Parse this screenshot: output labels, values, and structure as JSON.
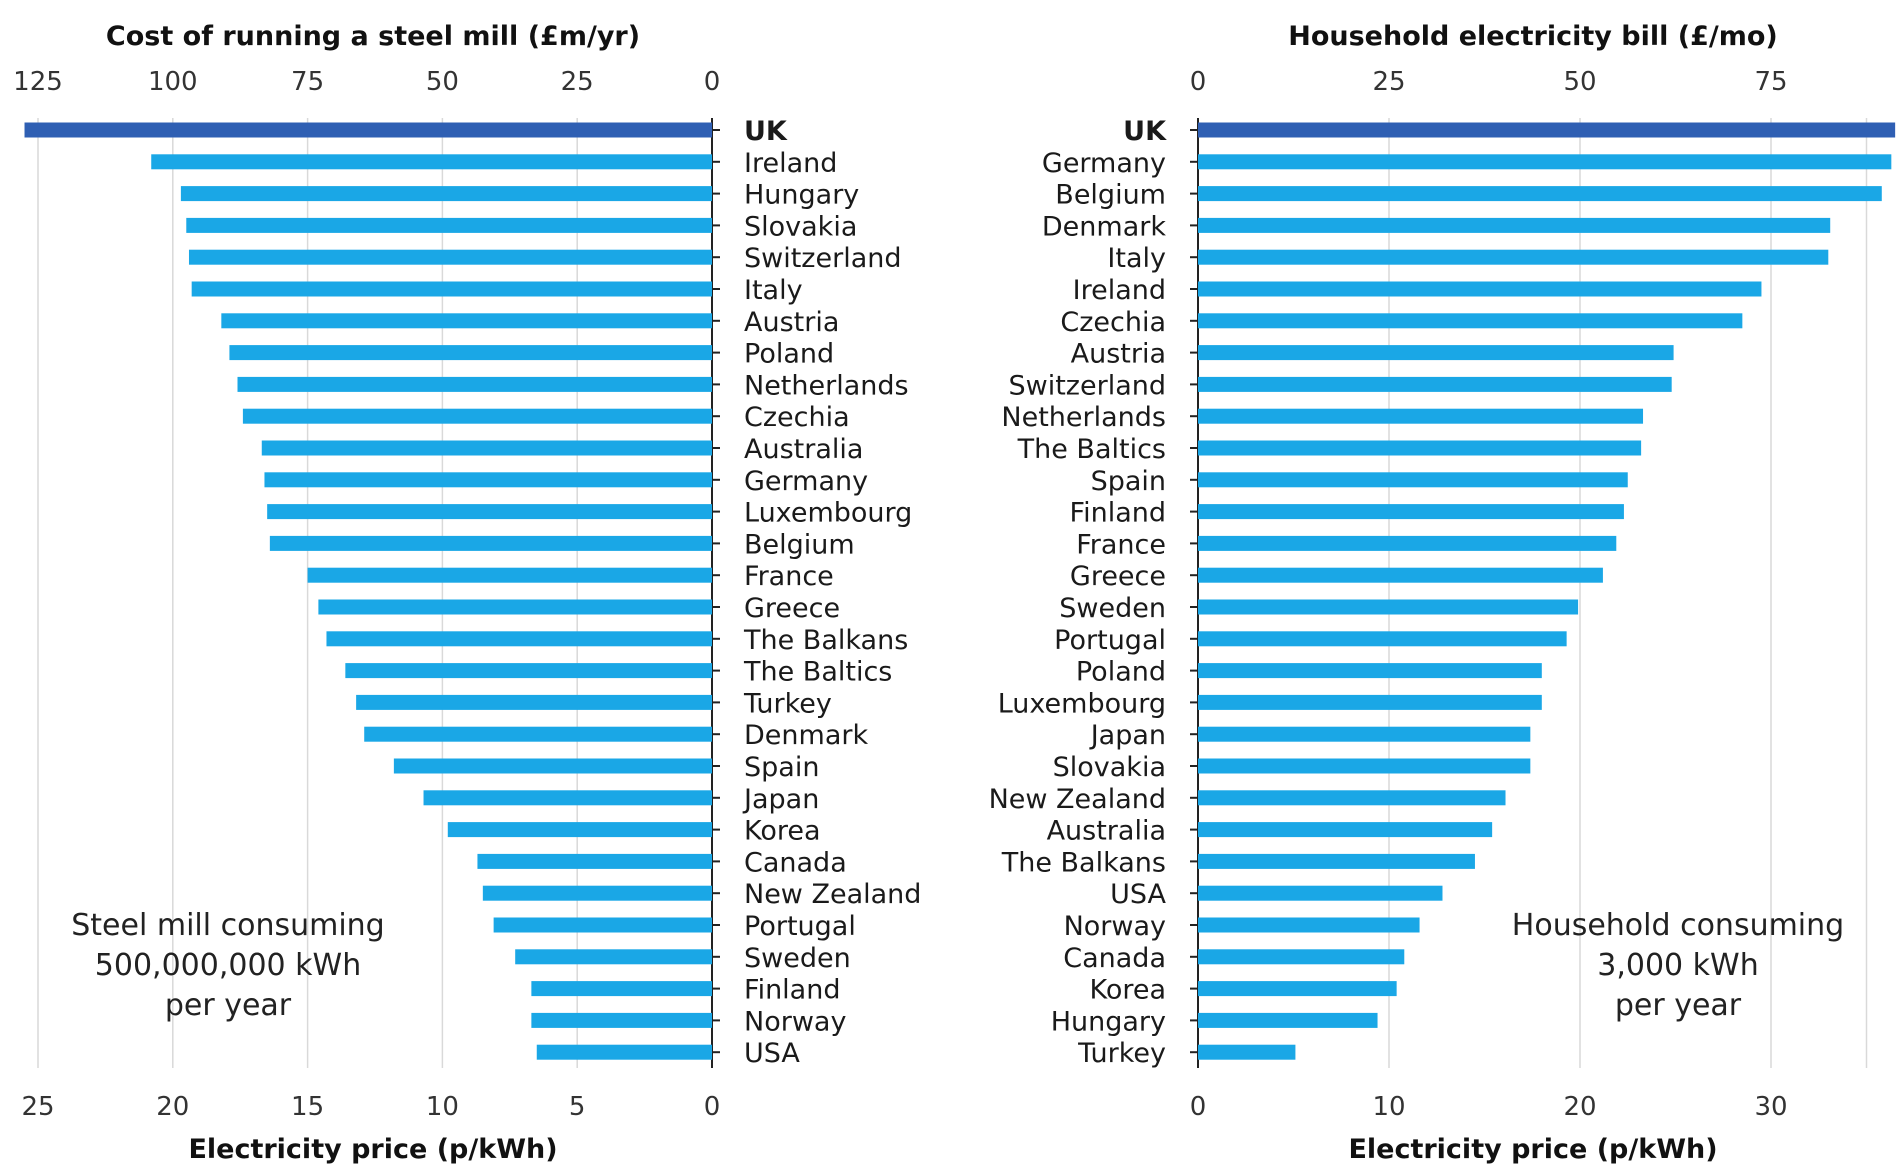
{
  "chart_data": [
    {
      "type": "bar",
      "orientation": "horizontal",
      "direction": "right-to-left",
      "top_axis_title": "Cost of running a steel mill (£m/yr)",
      "bottom_axis_title": "Electricity price (p/kWh)",
      "top_ticks": [
        "125",
        "100",
        "75",
        "50",
        "25",
        "0"
      ],
      "bottom_ticks": [
        "25",
        "20",
        "15",
        "10",
        "5",
        "0"
      ],
      "bottom_tick_values": [
        25,
        20,
        15,
        10,
        5,
        0
      ],
      "xlim": [
        0,
        25.7
      ],
      "annotation": [
        "Steel mill consuming",
        "500,000,000 kWh",
        "per year"
      ],
      "highlight_color": "#2f5fb3",
      "bar_color": "#1aa7e6",
      "categories": [
        "UK",
        "Ireland",
        "Hungary",
        "Slovakia",
        "Switzerland",
        "Italy",
        "Austria",
        "Poland",
        "Netherlands",
        "Czechia",
        "Australia",
        "Germany",
        "Luxembourg",
        "Belgium",
        "France",
        "Greece",
        "The Balkans",
        "The Baltics",
        "Turkey",
        "Denmark",
        "Spain",
        "Japan",
        "Korea",
        "Canada",
        "New Zealand",
        "Portugal",
        "Sweden",
        "Finland",
        "Norway",
        "USA"
      ],
      "values": [
        25.5,
        20.8,
        19.7,
        19.5,
        19.4,
        19.3,
        18.2,
        17.9,
        17.6,
        17.4,
        16.7,
        16.6,
        16.5,
        16.4,
        15.0,
        14.6,
        14.3,
        13.6,
        13.2,
        12.9,
        11.8,
        10.7,
        9.8,
        8.7,
        8.5,
        8.1,
        7.3,
        6.7,
        6.7,
        6.5
      ]
    },
    {
      "type": "bar",
      "orientation": "horizontal",
      "direction": "left-to-right",
      "top_axis_title": "Household electricity bill (£/mo)",
      "bottom_axis_title": "Electricity price (p/kWh)",
      "top_ticks": [
        "0",
        "25",
        "50",
        "75"
      ],
      "bottom_ticks": [
        "0",
        "10",
        "20",
        "30"
      ],
      "bottom_tick_values": [
        0,
        10,
        20,
        30
      ],
      "xlim": [
        0,
        36.6
      ],
      "annotation": [
        "Household consuming",
        "3,000 kWh",
        "per year"
      ],
      "highlight_color": "#2f5fb3",
      "bar_color": "#1aa7e6",
      "categories": [
        "UK",
        "Germany",
        "Belgium",
        "Denmark",
        "Italy",
        "Ireland",
        "Czechia",
        "Austria",
        "Switzerland",
        "Netherlands",
        "The Baltics",
        "Spain",
        "Finland",
        "France",
        "Greece",
        "Sweden",
        "Portugal",
        "Poland",
        "Luxembourg",
        "Japan",
        "Slovakia",
        "New Zealand",
        "Australia",
        "The Balkans",
        "USA",
        "Norway",
        "Canada",
        "Korea",
        "Hungary",
        "Turkey"
      ],
      "values": [
        36.5,
        36.3,
        35.8,
        33.1,
        33.0,
        29.5,
        28.5,
        24.9,
        24.8,
        23.3,
        23.2,
        22.5,
        22.3,
        21.9,
        21.2,
        19.9,
        19.3,
        18.0,
        18.0,
        17.4,
        17.4,
        16.1,
        15.4,
        14.5,
        12.8,
        11.6,
        10.8,
        10.4,
        9.4,
        5.1
      ]
    }
  ]
}
